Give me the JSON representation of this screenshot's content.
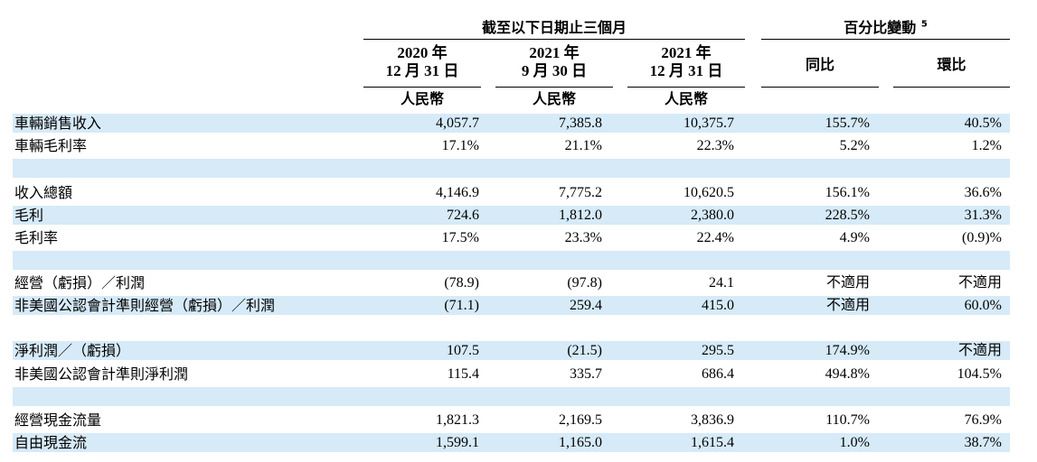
{
  "header": {
    "group_left": "截至以下日期止三個月",
    "group_right": "百分比變動",
    "group_right_note": "5",
    "col1": {
      "line1": "2020 年",
      "line2": "12 月 31 日",
      "currency": "人民幣"
    },
    "col2": {
      "line1": "2021 年",
      "line2": "9 月 30 日",
      "currency": "人民幣"
    },
    "col3": {
      "line1": "2021 年",
      "line2": "12 月 31 日",
      "currency": "人民幣"
    },
    "col4": "同比",
    "col5": "環比"
  },
  "rows": [
    {
      "label": "車輛銷售收入",
      "v": [
        "4,057.7",
        "7,385.8",
        "10,375.7",
        "155.7%",
        "40.5%"
      ]
    },
    {
      "label": "車輛毛利率",
      "v": [
        "17.1%",
        "21.1%",
        "22.3%",
        "5.2%",
        "1.2%"
      ]
    },
    {
      "label": "",
      "v": [
        "",
        "",
        "",
        "",
        ""
      ]
    },
    {
      "label": "收入總額",
      "v": [
        "4,146.9",
        "7,775.2",
        "10,620.5",
        "156.1%",
        "36.6%"
      ]
    },
    {
      "label": "毛利",
      "v": [
        "724.6",
        "1,812.0",
        "2,380.0",
        "228.5%",
        "31.3%"
      ]
    },
    {
      "label": "毛利率",
      "v": [
        "17.5%",
        "23.3%",
        "22.4%",
        "4.9%",
        "(0.9)%"
      ]
    },
    {
      "label": "",
      "v": [
        "",
        "",
        "",
        "",
        ""
      ]
    },
    {
      "label": "經營（虧損）／利潤",
      "v": [
        "(78.9)",
        "(97.8)",
        "24.1",
        "不適用",
        "不適用"
      ]
    },
    {
      "label": "非美國公認會計準則經營（虧損）／利潤",
      "v": [
        "(71.1)",
        "259.4",
        "415.0",
        "不適用",
        "60.0%"
      ]
    },
    {
      "label": "",
      "v": [
        "",
        "",
        "",
        "",
        ""
      ]
    },
    {
      "label": "淨利潤／（虧損）",
      "v": [
        "107.5",
        "(21.5)",
        "295.5",
        "174.9%",
        "不適用"
      ]
    },
    {
      "label": "非美國公認會計準則淨利潤",
      "v": [
        "115.4",
        "335.7",
        "686.4",
        "494.8%",
        "104.5%"
      ]
    },
    {
      "label": "",
      "v": [
        "",
        "",
        "",
        "",
        ""
      ]
    },
    {
      "label": "經營現金流量",
      "v": [
        "1,821.3",
        "2,169.5",
        "3,836.9",
        "110.7%",
        "76.9%"
      ]
    },
    {
      "label": "自由現金流",
      "v": [
        "1,599.1",
        "1,165.0",
        "1,615.4",
        "1.0%",
        "38.7%"
      ]
    }
  ]
}
